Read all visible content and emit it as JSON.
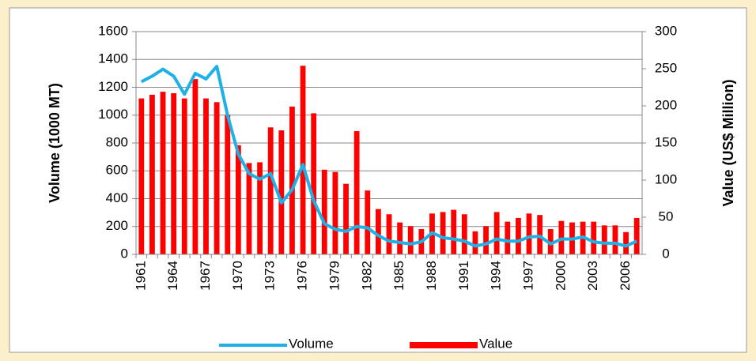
{
  "chart_data": {
    "type": "bar-line",
    "y_label": "Volume (1000 MT)",
    "y2_label": "Value (US$ Million)",
    "categories": [
      "1961",
      null,
      null,
      "1964",
      null,
      null,
      "1967",
      null,
      null,
      "1970",
      null,
      null,
      "1973",
      null,
      null,
      "1976",
      null,
      null,
      "1979",
      null,
      null,
      "1982",
      null,
      null,
      "1985",
      null,
      null,
      "1988",
      null,
      null,
      "1991",
      null,
      null,
      "1994",
      null,
      null,
      "1997",
      null,
      null,
      "2000",
      null,
      null,
      "2003",
      null,
      null,
      "2006",
      null
    ],
    "series": [
      {
        "name": "Volume",
        "type": "line",
        "color": "#1fb1e6",
        "axis": "y",
        "values": [
          1240,
          1280,
          1330,
          1280,
          1150,
          1300,
          1260,
          1350,
          1000,
          720,
          580,
          540,
          580,
          370,
          465,
          645,
          385,
          220,
          180,
          165,
          200,
          190,
          135,
          95,
          85,
          75,
          90,
          155,
          120,
          110,
          95,
          60,
          75,
          110,
          95,
          95,
          125,
          130,
          75,
          110,
          110,
          125,
          90,
          80,
          80,
          60,
          95
        ]
      },
      {
        "name": "Value",
        "type": "bar",
        "color": "#ff0000",
        "axis": "y2",
        "values": [
          210,
          215,
          219,
          217,
          210,
          236,
          210,
          205,
          188,
          147,
          123,
          124,
          171,
          167,
          199,
          254,
          190,
          114,
          111,
          95,
          166,
          86,
          61,
          54,
          43,
          38,
          34,
          55,
          57,
          60,
          54,
          31,
          38,
          57,
          44,
          49,
          55,
          53,
          34,
          45,
          43,
          44,
          44,
          39,
          39,
          30,
          49
        ]
      }
    ],
    "ylim": [
      0,
      1600
    ],
    "yticks": [
      0,
      200,
      400,
      600,
      800,
      1000,
      1200,
      1400,
      1600
    ],
    "y2lim": [
      0,
      300
    ],
    "y2ticks": [
      0,
      50,
      100,
      150,
      200,
      250,
      300
    ],
    "grid": true,
    "legend": "bottom"
  }
}
